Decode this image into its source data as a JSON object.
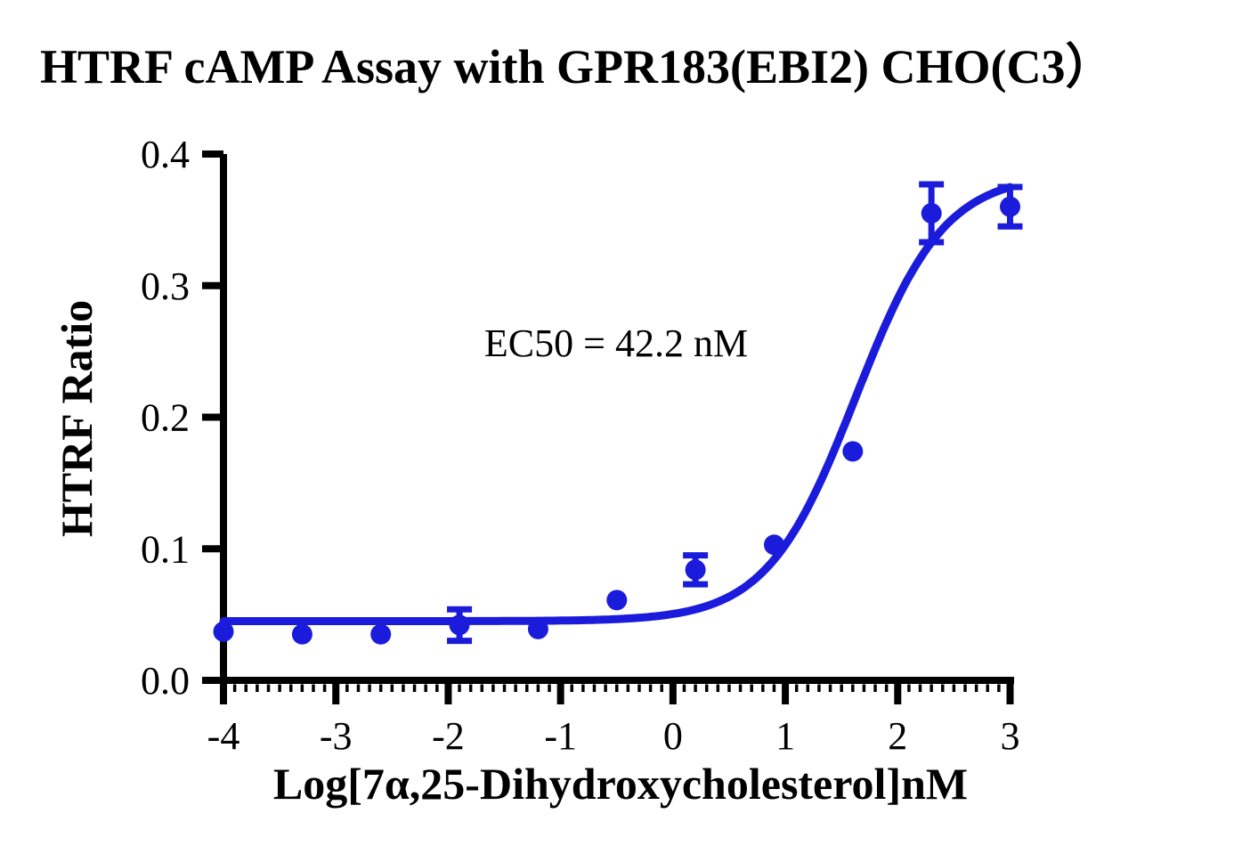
{
  "title": "HTRF cAMP Assay with GPR183(EBI2) CHO(C3）",
  "chart_data": {
    "type": "scatter",
    "title": "HTRF cAMP Assay with GPR183(EBI2) CHO(C3）",
    "xlabel": "Log[7α,25-Dihydroxycholesterol]nM",
    "ylabel": "HTRF Ratio",
    "annotation": "EC50 = 42.2 nM",
    "ec50_nM": 42.2,
    "xlim": [
      -4,
      3
    ],
    "ylim": [
      0.0,
      0.4
    ],
    "x_ticks": [
      -4,
      -3,
      -2,
      -1,
      0,
      1,
      2,
      3
    ],
    "x_tick_labels": [
      "-4",
      "-3",
      "-2",
      "-1",
      "0",
      "1",
      "2",
      "3"
    ],
    "x_minor_tick_step": 0.1,
    "y_ticks": [
      0.0,
      0.1,
      0.2,
      0.3,
      0.4
    ],
    "y_tick_labels": [
      "0.0",
      "0.1",
      "0.2",
      "0.3",
      "0.4"
    ],
    "grid": false,
    "legend": "none",
    "series": [
      {
        "name": "7α,25-Dihydroxycholesterol",
        "color": "#1b1bdb",
        "marker": "circle",
        "points": [
          {
            "x": -4.0,
            "y": 0.037
          },
          {
            "x": -3.3,
            "y": 0.035
          },
          {
            "x": -2.6,
            "y": 0.035
          },
          {
            "x": -1.9,
            "y": 0.042,
            "err": 0.012
          },
          {
            "x": -1.2,
            "y": 0.039
          },
          {
            "x": -0.5,
            "y": 0.061
          },
          {
            "x": 0.2,
            "y": 0.084,
            "err": 0.011
          },
          {
            "x": 0.9,
            "y": 0.103
          },
          {
            "x": 1.6,
            "y": 0.174
          },
          {
            "x": 2.3,
            "y": 0.355,
            "err": 0.022
          },
          {
            "x": 3.0,
            "y": 0.36,
            "err": 0.015
          }
        ],
        "fit": {
          "model": "4PL-sigmoid",
          "bottom": 0.045,
          "top": 0.385,
          "logEC50": 1.625,
          "hill": 1.1
        }
      }
    ],
    "axis_color": "#000000"
  }
}
